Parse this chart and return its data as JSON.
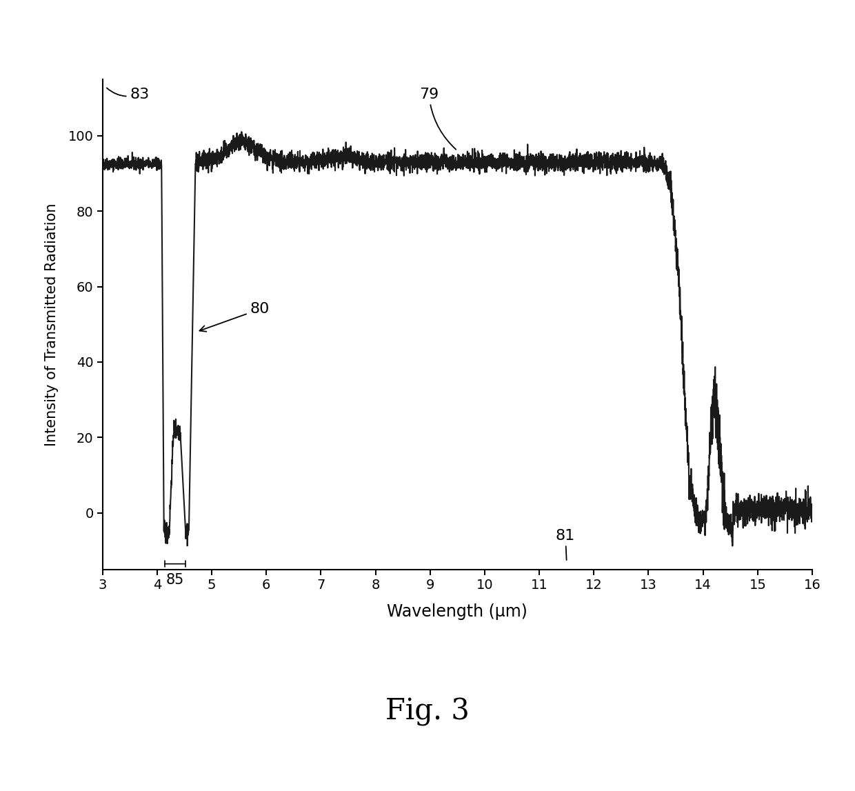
{
  "title": "Fig. 3",
  "xlabel": "Wavelength (μm)",
  "ylabel": "Intensity of Transmitted Radiation",
  "xlim": [
    3,
    16
  ],
  "ylim": [
    -15,
    115
  ],
  "yticks": [
    0,
    20,
    40,
    60,
    80,
    100
  ],
  "xticks": [
    3,
    4,
    5,
    6,
    7,
    8,
    9,
    10,
    11,
    12,
    13,
    14,
    15,
    16
  ],
  "line_color": "#1a1a1a",
  "bg_color": "#ffffff",
  "seed": 42
}
